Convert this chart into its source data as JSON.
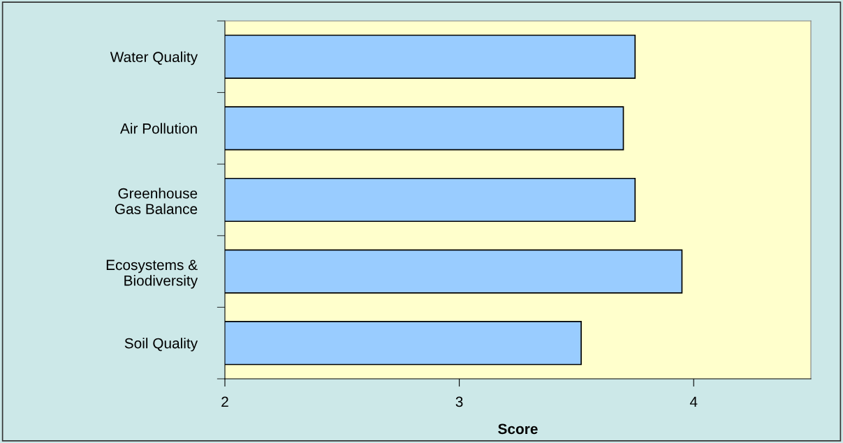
{
  "chart_data": {
    "type": "bar",
    "orientation": "horizontal",
    "xlabel": "Score",
    "categories": [
      "Water Quality",
      "Air Pollution",
      "Greenhouse\nGas Balance",
      "Ecosystems &\nBiodiversity",
      "Soil Quality"
    ],
    "values": [
      3.75,
      3.7,
      3.75,
      3.95,
      3.52
    ],
    "color": "#99ccff",
    "xlim": [
      2,
      4.5
    ],
    "xticks": [
      2,
      3,
      4
    ],
    "grid": false,
    "legend": false
  }
}
